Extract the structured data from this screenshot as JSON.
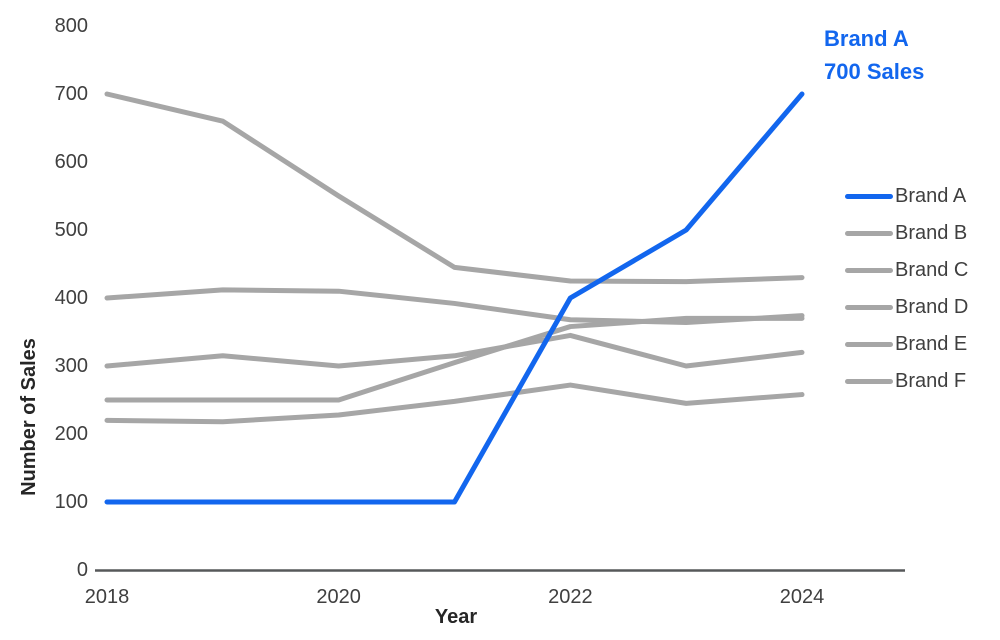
{
  "colors": {
    "highlight": "#1266ee",
    "muted": "#a6a6a6",
    "tick_text": "#3f3f3f",
    "axis_line": "#57585a"
  },
  "chart": {
    "y_axis": {
      "label": "Number of Sales",
      "ticks": [
        "800",
        "700",
        "600",
        "500",
        "400",
        "300",
        "200",
        "100",
        "0"
      ]
    },
    "x_axis": {
      "label": "Year",
      "ticks": [
        "2018",
        "2020",
        "2022",
        "2024"
      ]
    },
    "annotation": {
      "line1": "Brand A",
      "line2": "700 Sales"
    }
  },
  "chart_data": {
    "type": "line",
    "title": "",
    "xlabel": "Year",
    "ylabel": "Number of Sales",
    "x": [
      2018,
      2019,
      2020,
      2021,
      2022,
      2023,
      2024
    ],
    "xlim": [
      2018,
      2024
    ],
    "ylim": [
      0,
      800
    ],
    "y_tick_step": 100,
    "grid": false,
    "legend_position": "right",
    "annotation": "Brand A 700 Sales",
    "series": [
      {
        "name": "Brand A",
        "color": "#1266ee",
        "emphasis": true,
        "values": [
          100,
          100,
          100,
          100,
          400,
          500,
          700
        ]
      },
      {
        "name": "Brand B",
        "color": "#a6a6a6",
        "emphasis": false,
        "values": [
          700,
          660,
          550,
          445,
          425,
          424,
          430
        ]
      },
      {
        "name": "Brand C",
        "color": "#a6a6a6",
        "emphasis": false,
        "values": [
          400,
          412,
          410,
          392,
          368,
          364,
          374
        ]
      },
      {
        "name": "Brand D",
        "color": "#a6a6a6",
        "emphasis": false,
        "values": [
          300,
          315,
          300,
          315,
          345,
          300,
          320
        ]
      },
      {
        "name": "Brand E",
        "color": "#a6a6a6",
        "emphasis": false,
        "values": [
          250,
          250,
          250,
          305,
          358,
          370,
          370
        ]
      },
      {
        "name": "Brand F",
        "color": "#a6a6a6",
        "emphasis": false,
        "values": [
          220,
          218,
          228,
          248,
          272,
          245,
          258
        ]
      }
    ]
  }
}
